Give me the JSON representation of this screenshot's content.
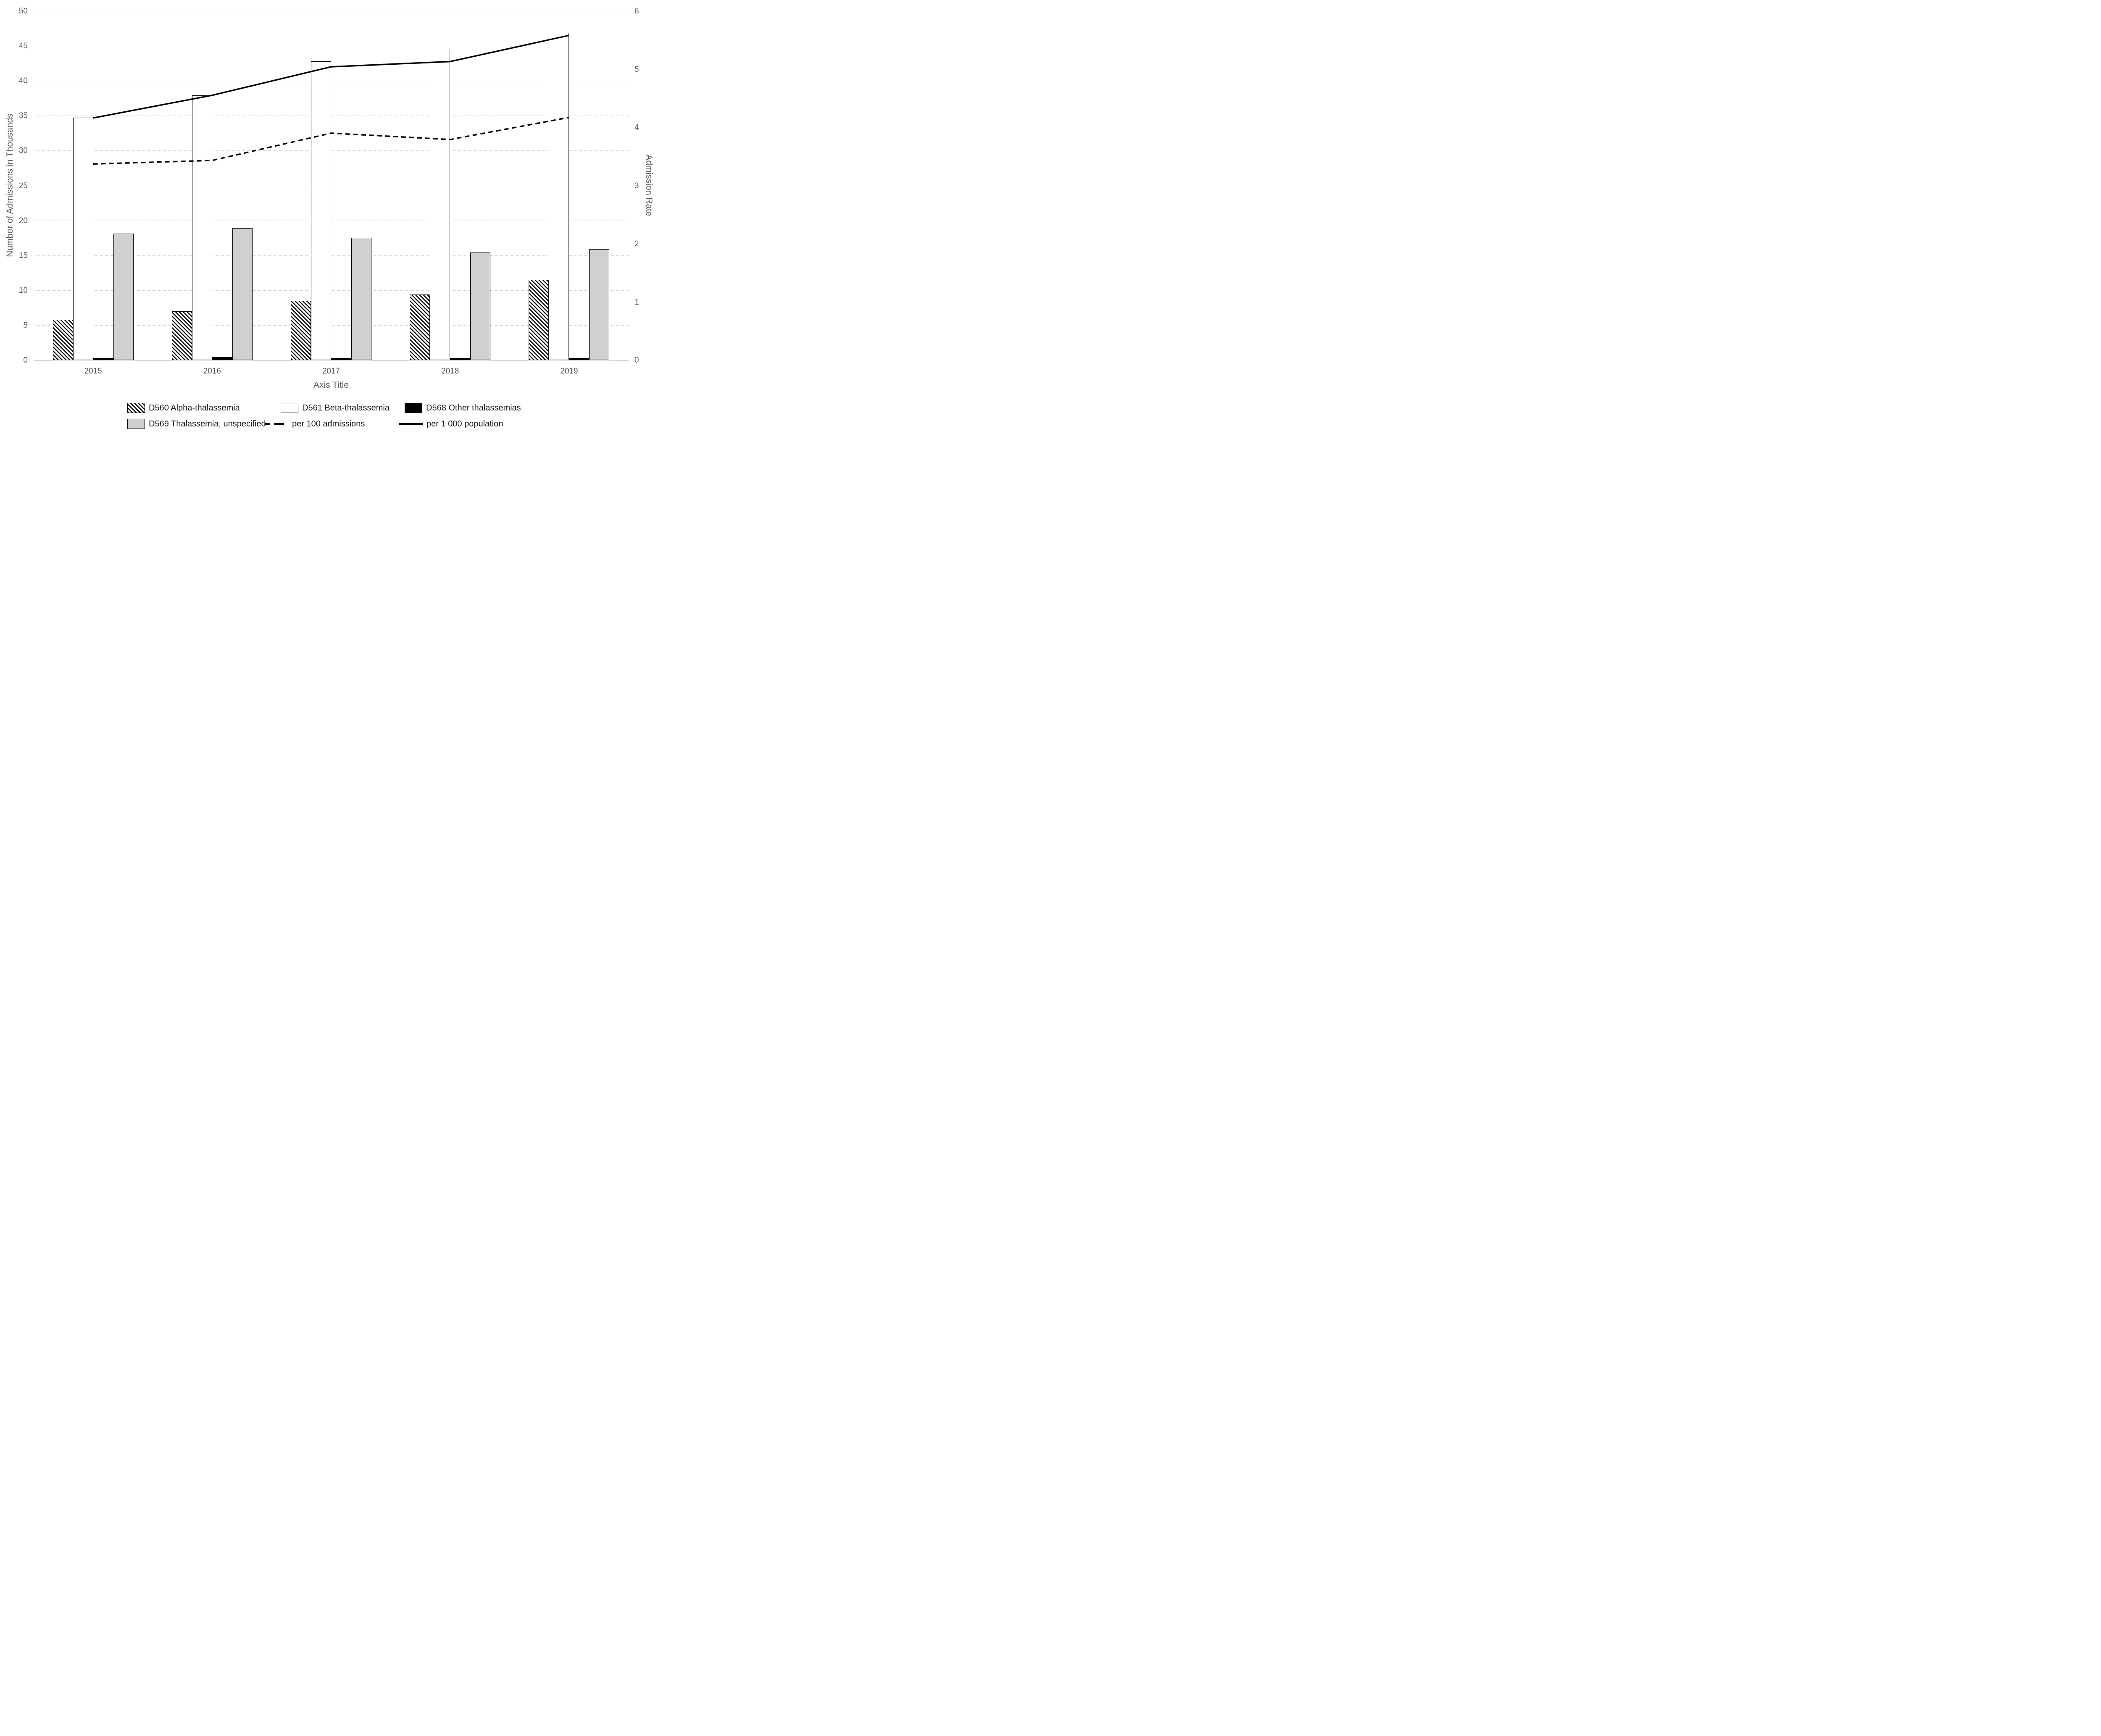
{
  "chart_data": {
    "type": "combo-bar-line",
    "title": "",
    "categories": [
      "2015",
      "2016",
      "2017",
      "2018",
      "2019"
    ],
    "bar_series": [
      {
        "name": "D560 Alpha-thalassemia",
        "style": "hatched",
        "axis": "left",
        "values": [
          5.8,
          7.0,
          8.5,
          9.4,
          11.5
        ]
      },
      {
        "name": "D561 Beta-thalassemia",
        "style": "white",
        "axis": "left",
        "values": [
          34.7,
          37.9,
          42.8,
          44.6,
          46.9
        ]
      },
      {
        "name": "D568 Other thalassemias",
        "style": "black",
        "axis": "left",
        "values": [
          0.3,
          0.5,
          0.3,
          0.3,
          0.3
        ]
      },
      {
        "name": "D569 Thalassemia, unspecified",
        "style": "gray",
        "axis": "left",
        "values": [
          18.1,
          18.9,
          17.5,
          15.4,
          15.9
        ]
      }
    ],
    "line_series": [
      {
        "name": "per 100 admissions",
        "style": "dashed",
        "axis": "right",
        "values": [
          3.37,
          3.43,
          3.9,
          3.79,
          4.17
        ]
      },
      {
        "name": "per 1 000 population",
        "style": "solid",
        "axis": "right",
        "values": [
          4.16,
          4.55,
          5.04,
          5.13,
          5.58
        ]
      }
    ],
    "left_axis": {
      "title": "Number of Admissions in Thousands",
      "min": 0,
      "max": 50,
      "step": 5,
      "ticks": [
        "0",
        "5",
        "10",
        "15",
        "20",
        "25",
        "30",
        "35",
        "40",
        "45",
        "50"
      ]
    },
    "right_axis": {
      "title": "Admission Rate",
      "min": 0,
      "max": 6,
      "step": 1,
      "ticks": [
        "0",
        "1",
        "2",
        "3",
        "4",
        "5",
        "6"
      ]
    },
    "x_axis": {
      "title": "Axis Title"
    },
    "grid": "horizontal-dotted",
    "legend_position": "bottom",
    "legend_rows": [
      [
        "D560 Alpha-thalassemia",
        "D561 Beta-thalassemia",
        "D568 Other thalassemias"
      ],
      [
        "D569 Thalassemia, unspecified",
        "per 100 admissions",
        "per 1 000 population"
      ]
    ]
  },
  "colors": {
    "background": "#ffffff",
    "gridline": "#c9c9c9",
    "axis_text": "#595959",
    "legend_text": "#1a1a1a",
    "series_black": "#000000",
    "series_gray_fill": "#d1d0ce",
    "line_color": "#000000"
  }
}
